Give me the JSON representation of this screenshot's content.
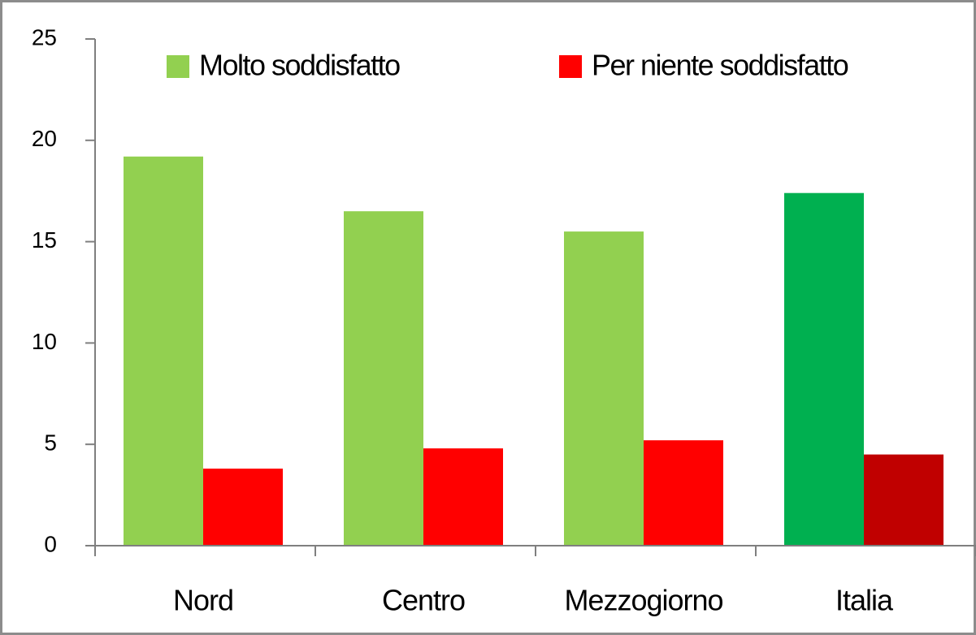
{
  "chart_data": {
    "type": "bar",
    "categories": [
      "Nord",
      "Centro",
      "Mezzogiorno",
      "Italia"
    ],
    "series": [
      {
        "name": "Molto soddisfatto",
        "color": "#92d050",
        "colors": [
          "#92d050",
          "#92d050",
          "#92d050",
          "#00b050"
        ],
        "values": [
          19.2,
          16.5,
          15.5,
          17.4
        ]
      },
      {
        "name": "Per niente soddisfatto",
        "color": "#ff0000",
        "colors": [
          "#ff0000",
          "#ff0000",
          "#ff0000",
          "#c00000"
        ],
        "values": [
          3.8,
          4.8,
          5.2,
          4.5
        ]
      }
    ],
    "ylim": [
      0,
      25
    ],
    "yticks": [
      0,
      5,
      10,
      15,
      20,
      25
    ],
    "grid": false,
    "legend": "top"
  }
}
